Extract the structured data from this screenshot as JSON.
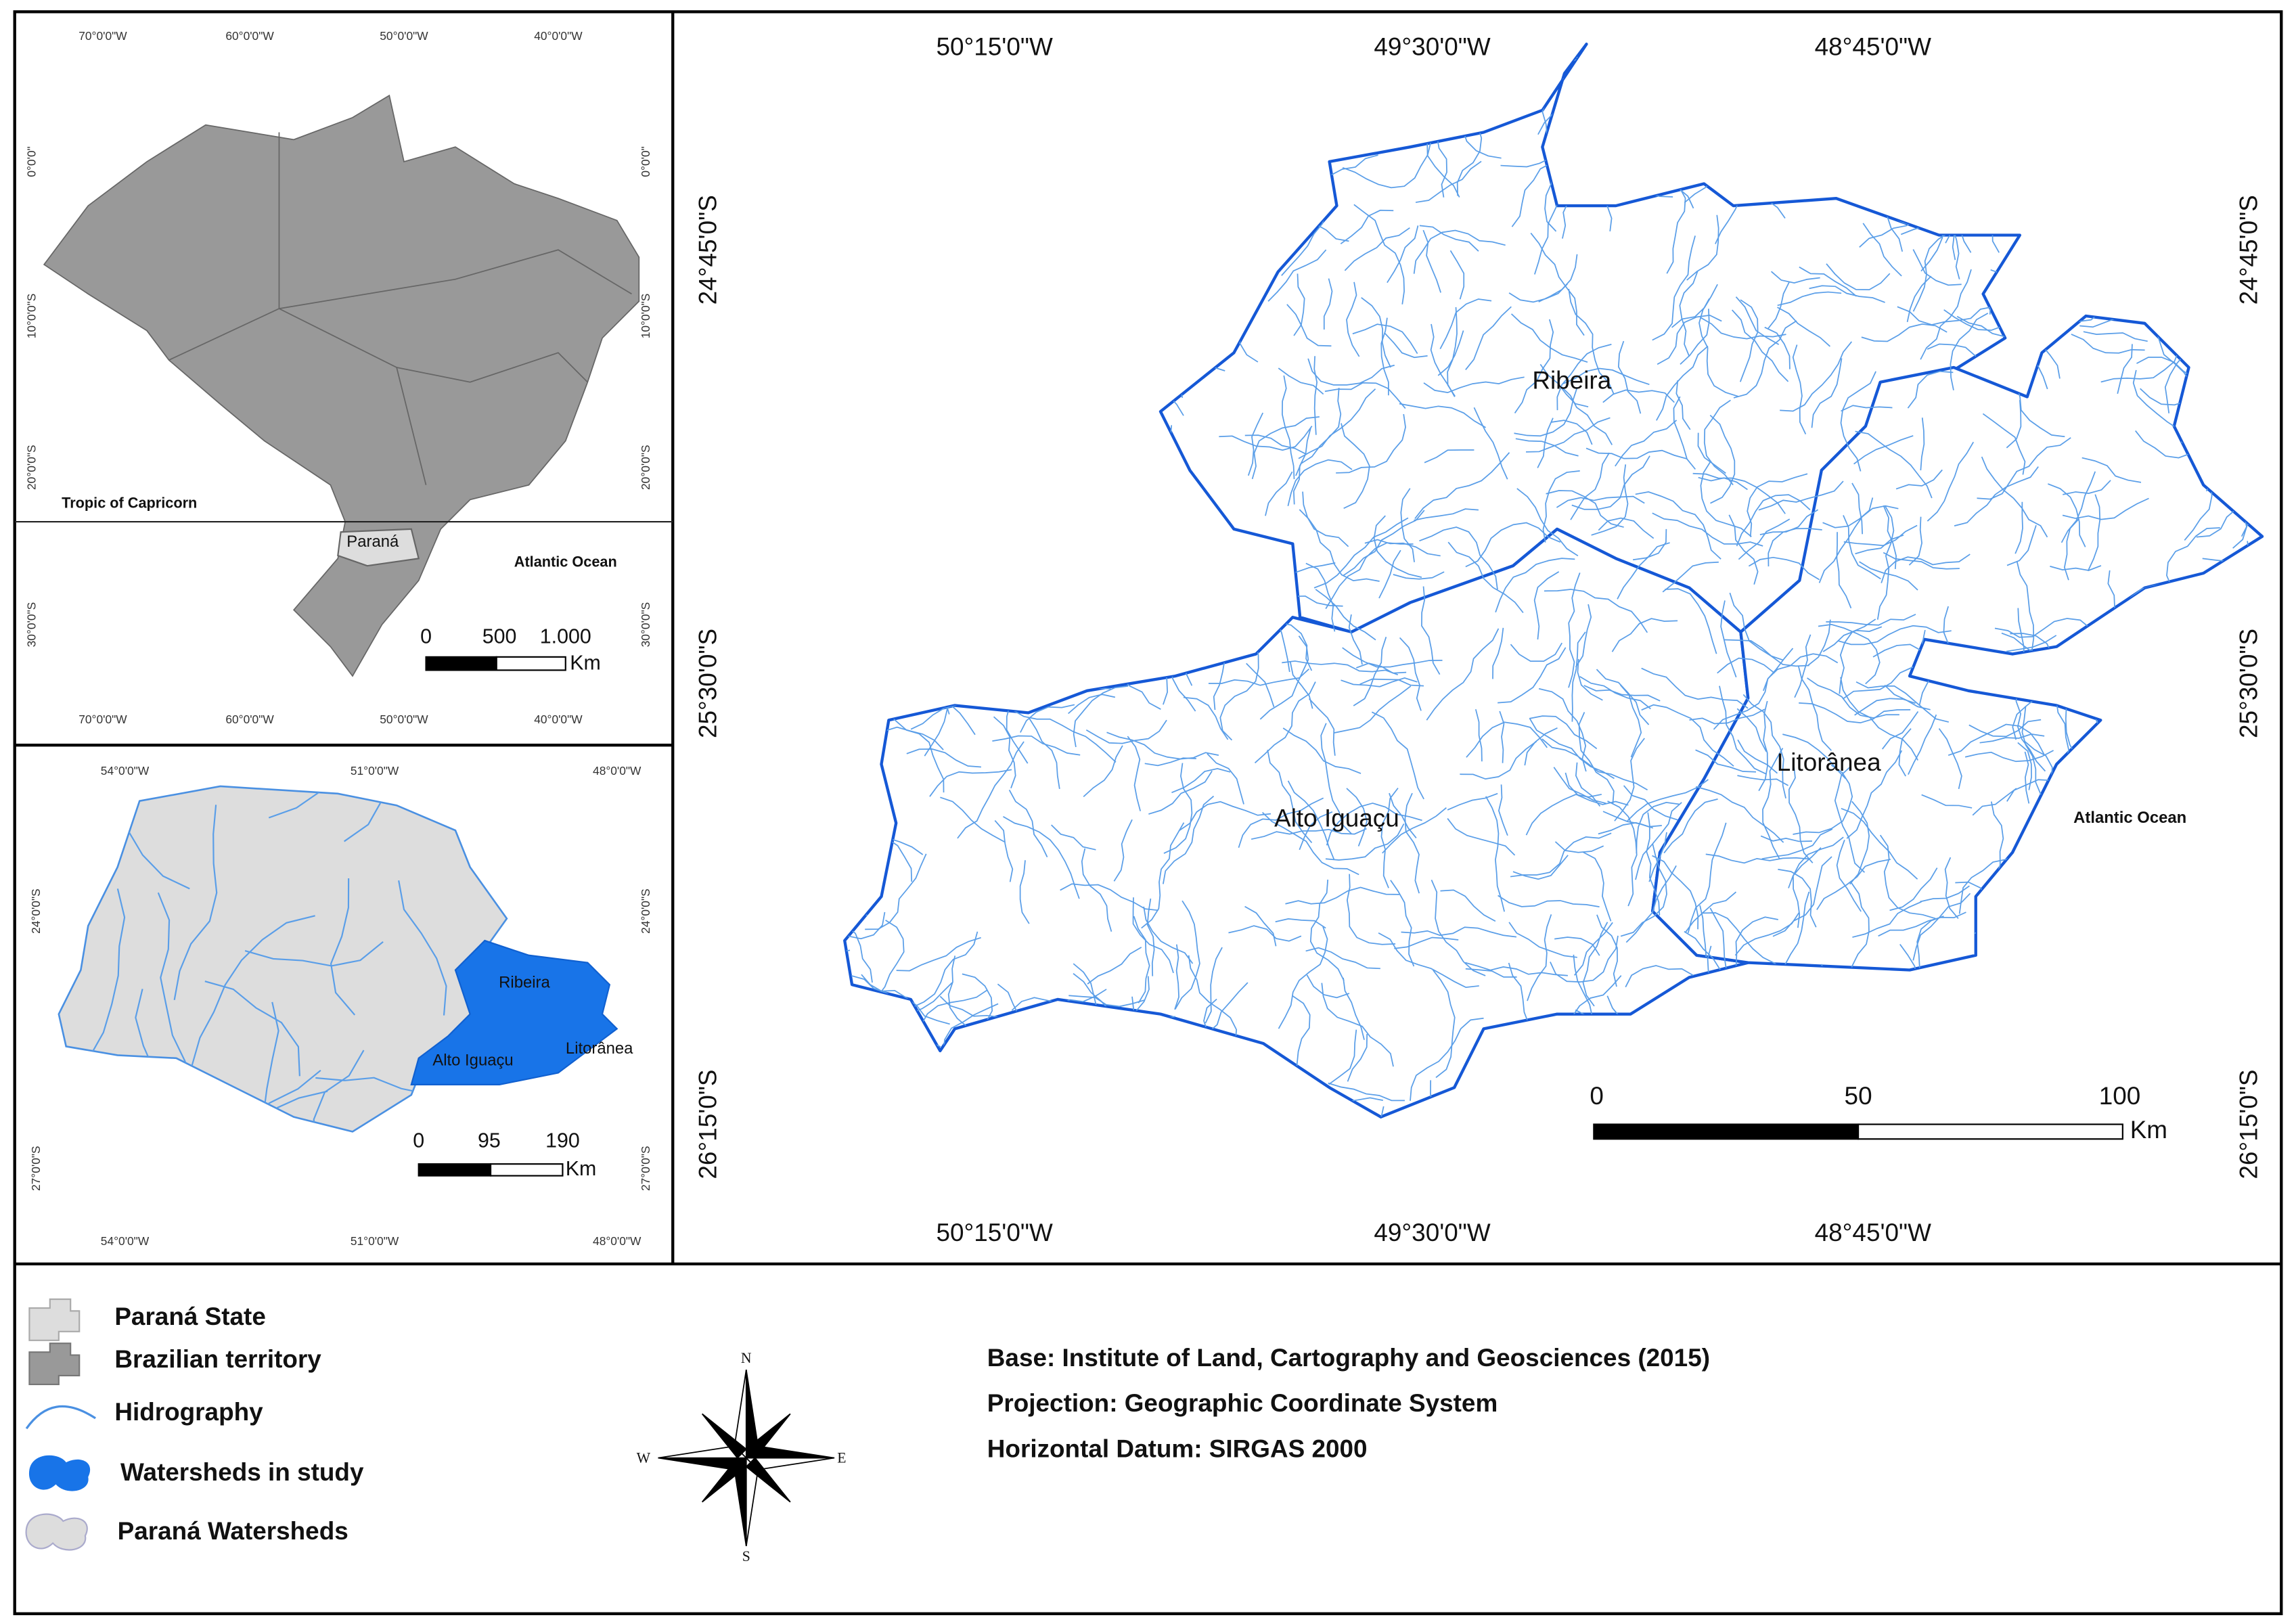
{
  "overview_map": {
    "x_labels": [
      "70°0'0\"W",
      "60°0'0\"W",
      "50°0'0\"W",
      "40°0'0\"W"
    ],
    "y_labels": [
      "0°0'0\"",
      "10°0'0\"S",
      "20°0'0\"S",
      "30°0'0\"S"
    ],
    "tropic_label": "Tropic of Capricorn",
    "state_label": "Paraná",
    "ocean_label": "Atlantic Ocean",
    "scale": {
      "ticks": [
        "0",
        "500",
        "1.000"
      ],
      "unit": "Km"
    }
  },
  "state_map": {
    "x_labels": [
      "54°0'0\"W",
      "51°0'0\"W",
      "48°0'0\"W"
    ],
    "y_labels": [
      "24°0'0\"S",
      "27°0'0\"S"
    ],
    "watershed_labels": [
      "Ribeira",
      "Alto Iguaçu",
      "Litorânea"
    ],
    "scale": {
      "ticks": [
        "0",
        "95",
        "190"
      ],
      "unit": "Km"
    }
  },
  "main_map": {
    "x_labels": [
      "50°15'0\"W",
      "49°30'0\"W",
      "48°45'0\"W"
    ],
    "y_labels": [
      "24°45'0\"S",
      "25°30'0\"S",
      "26°15'0\"S"
    ],
    "watershed_labels": [
      "Ribeira",
      "Litorânea",
      "Alto Iguaçu"
    ],
    "ocean_label": "Atlantic Ocean",
    "scale": {
      "ticks": [
        "0",
        "50",
        "100"
      ],
      "unit": "Km"
    }
  },
  "legend": {
    "items": [
      "Paraná State",
      "Brazilian territory",
      "Hidrography",
      "Watersheds in study",
      "Paraná Watersheds"
    ]
  },
  "compass": {
    "north": "N",
    "south": "S",
    "east": "E",
    "west": "W"
  },
  "credits": [
    "Base: Institute of Land, Cartography and Geosciences (2015)",
    "Projection: Geographic Coordinate System",
    "Horizontal Datum: SIRGAS 2000"
  ]
}
